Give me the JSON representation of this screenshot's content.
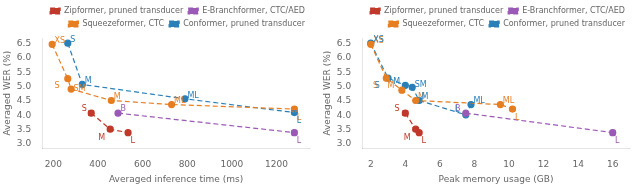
{
  "chart_data": [
    {
      "type": "line",
      "xlabel": "Averaged inference time (ms)",
      "ylabel": "Averaged WER (%)",
      "xlim": [
        150,
        1350
      ],
      "ylim": [
        2.85,
        6.7
      ],
      "xticks": [
        200,
        400,
        600,
        800,
        1000,
        1200
      ],
      "yticks": [
        {
          "value": 3.0,
          "label": "3.0"
        },
        3.5,
        {
          "value": 4.0,
          "label": "4.0"
        },
        4.5,
        {
          "value": 5.0,
          "label": "5.0"
        },
        5.5,
        {
          "value": 6.0,
          "label": "6.0"
        },
        6.5
      ],
      "grid": false,
      "legend": "upper right",
      "line_style": "dashed",
      "marker": "circle",
      "series": [
        {
          "name": "Zipformer, pruned transducer",
          "color": "#c0392b",
          "x": [
            370,
            455,
            535
          ],
          "values": [
            4.08,
            3.52,
            3.4
          ],
          "yerr": [
            0.08,
            0.06,
            0.05
          ],
          "point_labels": [
            "S",
            "M",
            "L"
          ]
        },
        {
          "name": "E-Branchformer, CTC/AED",
          "color": "#9b59b6",
          "x": [
            490,
            1280
          ],
          "values": [
            4.08,
            3.4
          ],
          "yerr": [
            0.0,
            0.08
          ],
          "point_labels": [
            "B",
            "L"
          ]
        },
        {
          "name": "Squeezeformer, CTC",
          "color": "#e67e22",
          "x": [
            195,
            265,
            280,
            460,
            730,
            1280
          ],
          "values": [
            6.48,
            5.28,
            4.92,
            4.52,
            4.38,
            4.22
          ],
          "yerr": [
            0.0,
            0.0,
            0.0,
            0.0,
            0.0,
            0.06
          ],
          "point_labels": [
            "XS",
            "S",
            "SM",
            "M",
            "ML",
            "L"
          ]
        },
        {
          "name": "Conformer, pruned transducer",
          "color": "#2980b9",
          "x": [
            265,
            330,
            790,
            1280
          ],
          "values": [
            6.52,
            5.08,
            4.58,
            4.1
          ],
          "yerr": [
            0.0,
            0.0,
            0.0,
            0.06
          ],
          "point_labels": [
            "S",
            "M",
            "ML",
            "L"
          ]
        }
      ]
    },
    {
      "type": "line",
      "xlabel": "Peak memory usage (GB)",
      "ylabel": "Averaged WER (%)",
      "xlim": [
        1.5,
        17
      ],
      "ylim": [
        2.85,
        6.7
      ],
      "xticks": [
        2,
        4,
        6,
        8,
        10,
        12,
        14,
        16
      ],
      "yticks": [
        {
          "value": 3.0,
          "label": "3.0"
        },
        3.5,
        {
          "value": 4.0,
          "label": "4.0"
        },
        4.5,
        {
          "value": 5.0,
          "label": "5.0"
        },
        5.5,
        {
          "value": 6.0,
          "label": "6.0"
        },
        6.5
      ],
      "grid": false,
      "legend": "upper right",
      "line_style": "dashed",
      "marker": "circle",
      "series": [
        {
          "name": "Zipformer, pruned transducer",
          "color": "#c0392b",
          "x": [
            4.0,
            4.6,
            4.8
          ],
          "values": [
            4.08,
            3.52,
            3.4
          ],
          "yerr": [
            0.08,
            0.06,
            0.05
          ],
          "point_labels": [
            "S",
            "M",
            "L"
          ]
        },
        {
          "name": "E-Branchformer, CTC/AED",
          "color": "#9b59b6",
          "x": [
            7.5,
            16.0
          ],
          "values": [
            4.08,
            3.4
          ],
          "yerr": [
            0.0,
            0.08
          ],
          "point_labels": [
            "B",
            "L"
          ]
        },
        {
          "name": "Squeezeformer, CTC",
          "color": "#e67e22",
          "x": [
            2.0,
            2.9,
            3.8,
            4.6,
            9.5,
            10.2
          ],
          "values": [
            6.48,
            5.3,
            4.88,
            4.52,
            4.38,
            4.22
          ],
          "yerr": [
            0.0,
            0.0,
            0.0,
            0.0,
            0.0,
            0.06
          ],
          "point_labels": [
            "XS",
            "S",
            "M",
            "M",
            "ML",
            "L"
          ]
        },
        {
          "name": "Conformer, pruned transducer",
          "color": "#2980b9",
          "x": [
            2.0,
            3.0,
            4.0,
            4.4,
            4.8,
            7.5,
            7.8
          ],
          "values": [
            6.52,
            5.3,
            5.05,
            4.98,
            4.52,
            4.02,
            4.38
          ],
          "yerr": [
            0.0,
            0.0,
            0.0,
            0.0,
            0.0,
            0.0,
            0.06
          ],
          "point_labels": [
            "XS",
            "S",
            "M",
            "SM",
            "M",
            "L",
            "ML"
          ]
        }
      ]
    }
  ]
}
